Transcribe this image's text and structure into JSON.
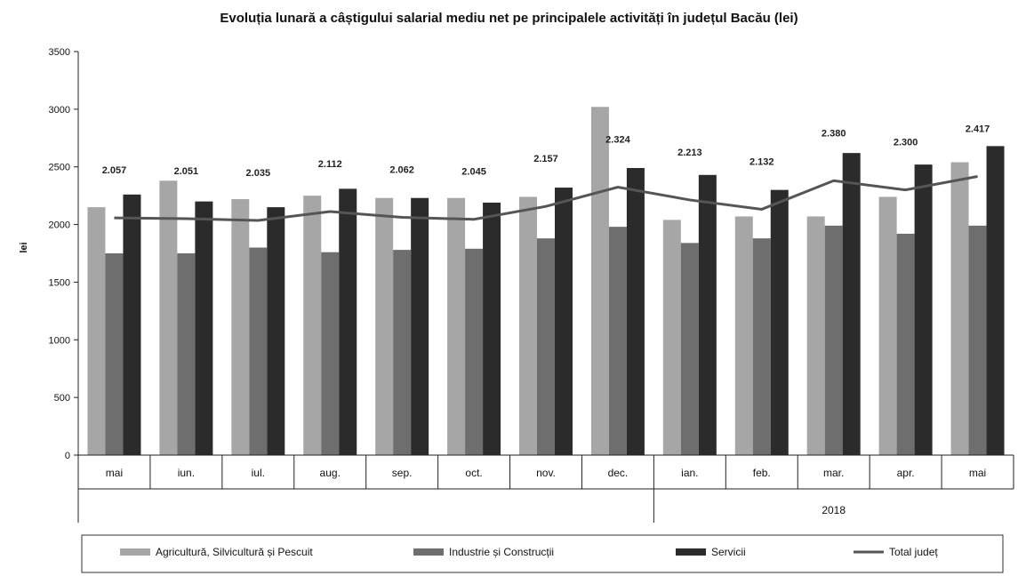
{
  "chart_data": {
    "type": "bar",
    "title": "Evoluția lunară a câștigului salarial mediu net pe principalele activități în județul Bacău (lei)",
    "ylabel": "lei",
    "ylim": [
      0,
      3500
    ],
    "yticks": [
      0,
      500,
      1000,
      1500,
      2000,
      2500,
      3000,
      3500
    ],
    "categories": [
      "mai",
      "iun.",
      "iul.",
      "aug.",
      "sep.",
      "oct.",
      "nov.",
      "dec.",
      "ian.",
      "feb.",
      "mar.",
      "apr.",
      "mai"
    ],
    "year_label": "2018",
    "year_group_start_index": 8,
    "grid": false,
    "legend_position": "bottom",
    "series": [
      {
        "name": "Agricultură, Silvicultură și Pescuit",
        "kind": "bar",
        "color": "#a6a6a6",
        "values": [
          2150,
          2380,
          2220,
          2250,
          2230,
          2230,
          2240,
          3020,
          2040,
          2070,
          2070,
          2240,
          2540
        ]
      },
      {
        "name": "Industrie și Construcții",
        "kind": "bar",
        "color": "#6e6e6e",
        "values": [
          1750,
          1750,
          1800,
          1760,
          1780,
          1790,
          1880,
          1980,
          1840,
          1880,
          1990,
          1920,
          1990
        ]
      },
      {
        "name": "Servicii",
        "kind": "bar",
        "color": "#2b2b2b",
        "values": [
          2260,
          2200,
          2150,
          2310,
          2230,
          2190,
          2320,
          2490,
          2430,
          2300,
          2620,
          2520,
          2680
        ]
      },
      {
        "name": "Total județ",
        "kind": "line",
        "color": "#555555",
        "values": [
          2057,
          2051,
          2035,
          2112,
          2062,
          2045,
          2157,
          2324,
          2213,
          2132,
          2380,
          2300,
          2417
        ],
        "labels": [
          "2.057",
          "2.051",
          "2.035",
          "2.112",
          "2.062",
          "2.045",
          "2.157",
          "2.324",
          "2.213",
          "2.132",
          "2.380",
          "2.300",
          "2.417"
        ]
      }
    ]
  }
}
